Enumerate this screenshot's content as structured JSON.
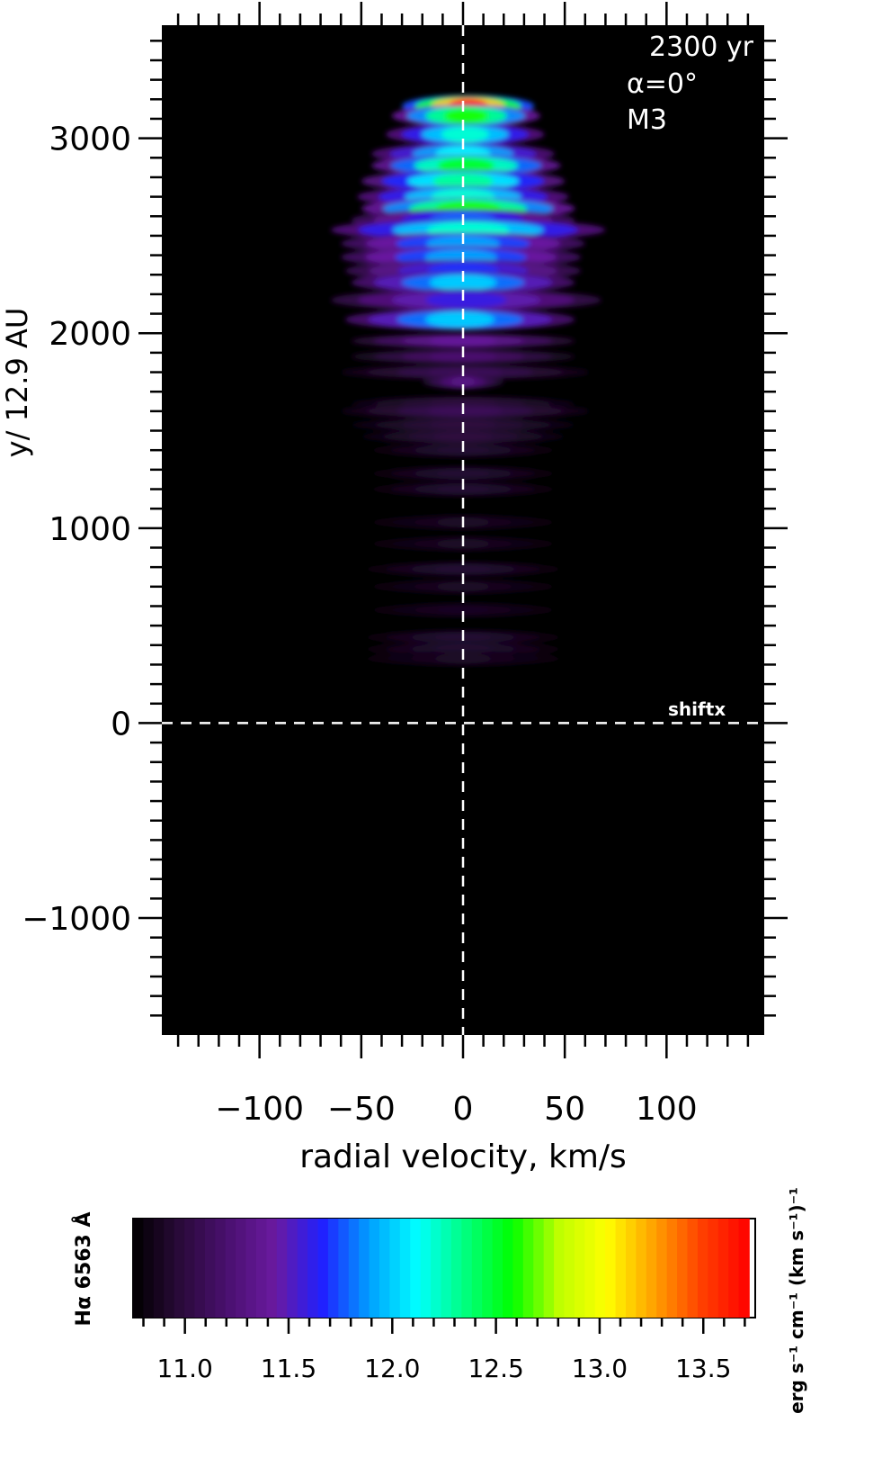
{
  "chart_data": {
    "type": "heatmap",
    "title": "",
    "xlabel": "radial velocity, km/s",
    "ylabel": "y/ 12.9 AU",
    "xlim": [
      -148,
      148
    ],
    "ylim": [
      -1600,
      3580
    ],
    "x_ticks": [
      "-100",
      "-50",
      "0",
      "50",
      "100"
    ],
    "x_tick_values": [
      -100,
      -50,
      0,
      50,
      100
    ],
    "y_ticks": [
      "3000",
      "2000",
      "1000",
      "0",
      "-1000"
    ],
    "y_tick_values": [
      3000,
      2000,
      1000,
      0,
      -1000
    ],
    "annotations": {
      "time": "2300 yr",
      "angle": "α=0°",
      "model": "M3",
      "shift": "shiftx"
    },
    "reference_lines": {
      "x": 0,
      "y": 0,
      "style": "dashed",
      "color": "#ffffff"
    },
    "background": "#000000",
    "colorbar": {
      "label": "Hα 6563 Å",
      "units": "erg s⁻¹ cm⁻¹ (km s⁻¹)⁻¹",
      "range": [
        10.75,
        13.72
      ],
      "ticks": [
        "11.0",
        "11.5",
        "12.0",
        "12.5",
        "13.0",
        "13.5"
      ],
      "tick_values": [
        11.0,
        11.5,
        12.0,
        12.5,
        13.0,
        13.5
      ],
      "colors": [
        "#000000",
        "#2a0a3a",
        "#4a1070",
        "#6a1aa0",
        "#2020ff",
        "#00a0ff",
        "#00ffff",
        "#00ff80",
        "#00ff00",
        "#c0ff00",
        "#ffff00",
        "#ffa000",
        "#ff4000",
        "#ff0000"
      ]
    },
    "emission_rows": [
      {
        "y": 3165,
        "xl": -30,
        "xr": 35,
        "level": 13.6
      },
      {
        "y": 3115,
        "xl": -35,
        "xr": 38,
        "level": 12.6
      },
      {
        "y": 3020,
        "xl": -38,
        "xr": 40,
        "level": 12.2
      },
      {
        "y": 2920,
        "xl": -45,
        "xr": 45,
        "level": 12.1
      },
      {
        "y": 2860,
        "xl": -45,
        "xr": 48,
        "level": 12.5
      },
      {
        "y": 2780,
        "xl": -50,
        "xr": 50,
        "level": 12.3
      },
      {
        "y": 2700,
        "xl": -52,
        "xr": 52,
        "level": 12.2
      },
      {
        "y": 2640,
        "xl": -50,
        "xr": 55,
        "level": 12.6
      },
      {
        "y": 2580,
        "xl": -55,
        "xr": 55,
        "level": 11.8
      },
      {
        "y": 2530,
        "xl": -65,
        "xr": 70,
        "level": 12.2
      },
      {
        "y": 2460,
        "xl": -60,
        "xr": 60,
        "level": 11.9
      },
      {
        "y": 2390,
        "xl": -60,
        "xr": 58,
        "level": 11.9
      },
      {
        "y": 2320,
        "xl": -58,
        "xr": 58,
        "level": 11.7
      },
      {
        "y": 2260,
        "xl": -55,
        "xr": 55,
        "level": 12.0
      },
      {
        "y": 2170,
        "xl": -65,
        "xr": 68,
        "level": 11.6
      },
      {
        "y": 2070,
        "xl": -58,
        "xr": 55,
        "level": 12.0
      },
      {
        "y": 1960,
        "xl": -55,
        "xr": 55,
        "level": 11.4
      },
      {
        "y": 1880,
        "xl": -55,
        "xr": 55,
        "level": 11.2
      },
      {
        "y": 1800,
        "xl": -60,
        "xr": 62,
        "level": 11.1
      },
      {
        "y": 1750,
        "xl": -20,
        "xr": 20,
        "level": 11.3
      },
      {
        "y": 1640,
        "xl": -55,
        "xr": 55,
        "level": 11.0
      },
      {
        "y": 1600,
        "xl": -60,
        "xr": 62,
        "level": 11.1
      },
      {
        "y": 1530,
        "xl": -55,
        "xr": 55,
        "level": 11.0
      },
      {
        "y": 1470,
        "xl": -50,
        "xr": 50,
        "level": 11.0
      },
      {
        "y": 1400,
        "xl": -45,
        "xr": 45,
        "level": 10.95
      },
      {
        "y": 1280,
        "xl": -45,
        "xr": 45,
        "level": 10.95
      },
      {
        "y": 1200,
        "xl": -45,
        "xr": 45,
        "level": 10.95
      },
      {
        "y": 1030,
        "xl": -45,
        "xr": 45,
        "level": 10.9
      },
      {
        "y": 920,
        "xl": -45,
        "xr": 45,
        "level": 10.9
      },
      {
        "y": 790,
        "xl": -48,
        "xr": 48,
        "level": 10.95
      },
      {
        "y": 700,
        "xl": -45,
        "xr": 45,
        "level": 10.9
      },
      {
        "y": 580,
        "xl": -45,
        "xr": 45,
        "level": 10.88
      },
      {
        "y": 440,
        "xl": -48,
        "xr": 48,
        "level": 10.95
      },
      {
        "y": 380,
        "xl": -48,
        "xr": 48,
        "level": 10.95
      },
      {
        "y": 330,
        "xl": -48,
        "xr": 48,
        "level": 10.9
      }
    ]
  }
}
